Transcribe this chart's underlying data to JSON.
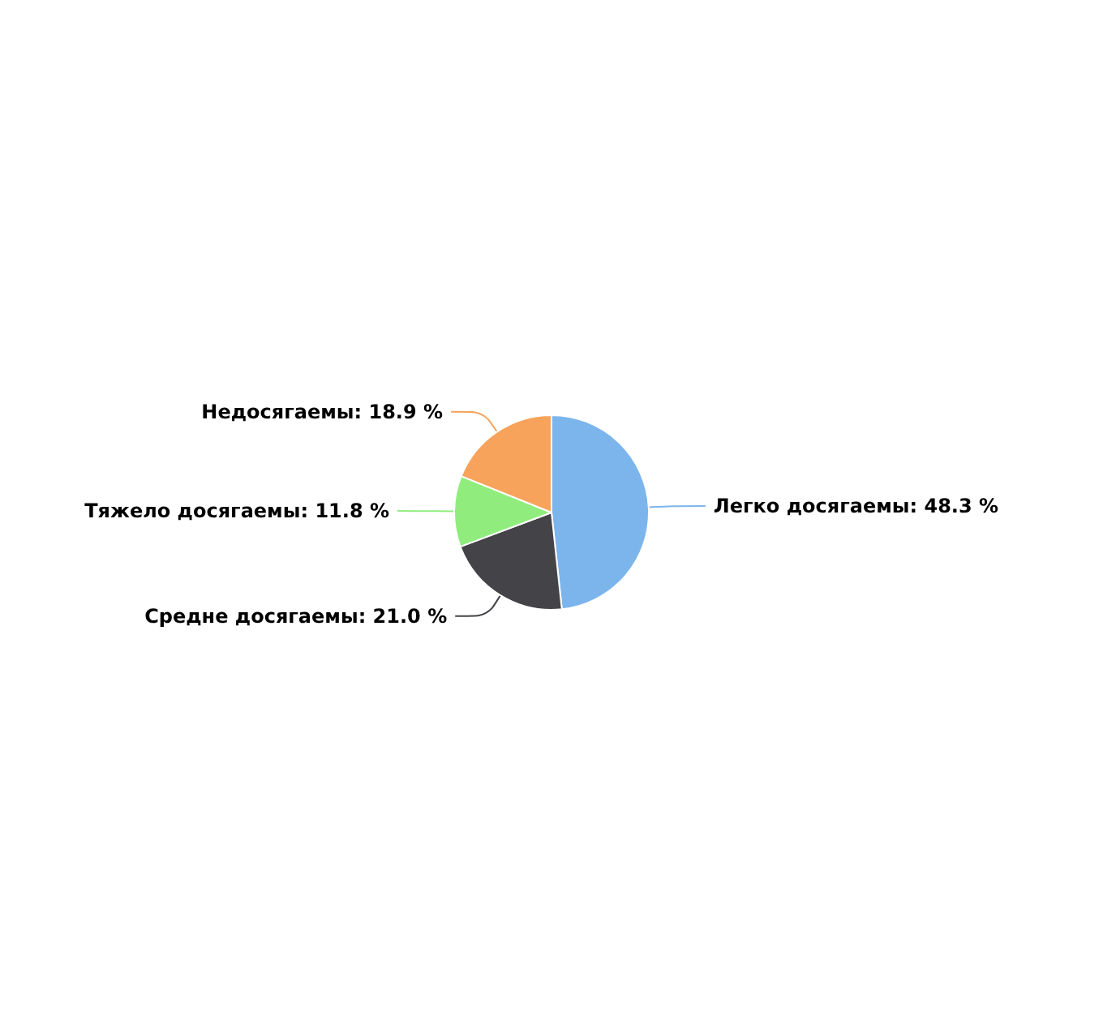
{
  "chart_data": {
    "type": "pie",
    "categories": [
      "Легко досягаемы",
      "Средне досягаемы",
      "Тяжело досягаемы",
      "Недосягаемы"
    ],
    "values": [
      48.3,
      21.0,
      11.8,
      18.9
    ],
    "value_labels": [
      "48.3 %",
      "21.0 %",
      "11.8 %",
      "18.9 %"
    ],
    "colors": [
      "#7cb5ec",
      "#434348",
      "#90ed7d",
      "#f7a35c"
    ],
    "legend": false
  }
}
